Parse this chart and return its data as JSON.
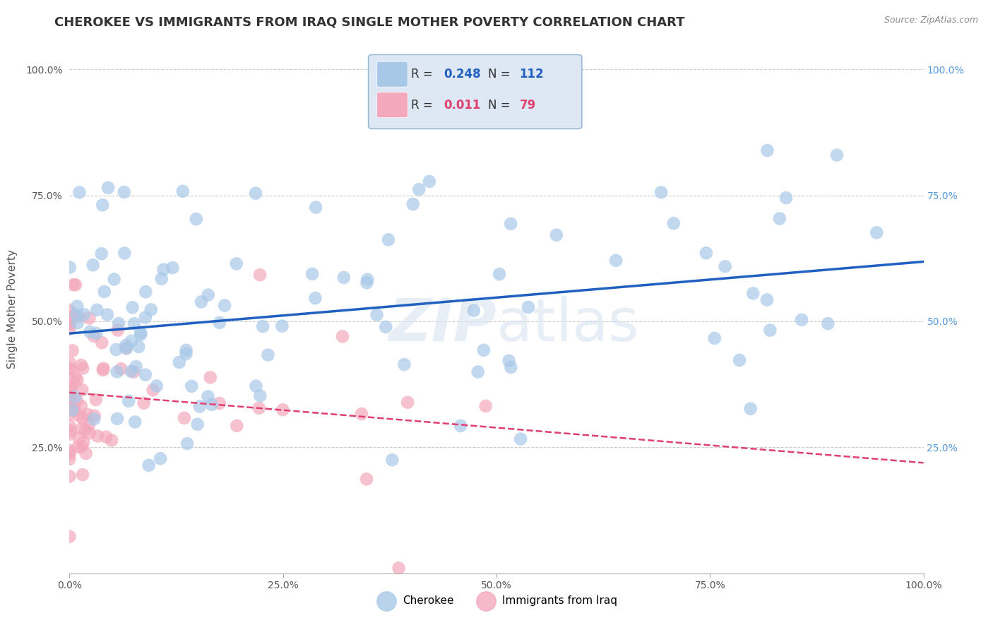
{
  "title": "CHEROKEE VS IMMIGRANTS FROM IRAQ SINGLE MOTHER POVERTY CORRELATION CHART",
  "source": "Source: ZipAtlas.com",
  "ylabel": "Single Mother Poverty",
  "watermark": "ZIPatlas",
  "cherokee_R": 0.248,
  "cherokee_N": 112,
  "iraq_R": 0.011,
  "iraq_N": 79,
  "cherokee_color": "#a8c8e8",
  "iraq_color": "#f4a8bc",
  "cherokee_line_color": "#2060c0",
  "iraq_line_color": "#e04070",
  "title_fontsize": 13,
  "axis_label_fontsize": 11,
  "tick_fontsize": 10,
  "background_color": "#ffffff",
  "grid_color": "#cccccc"
}
